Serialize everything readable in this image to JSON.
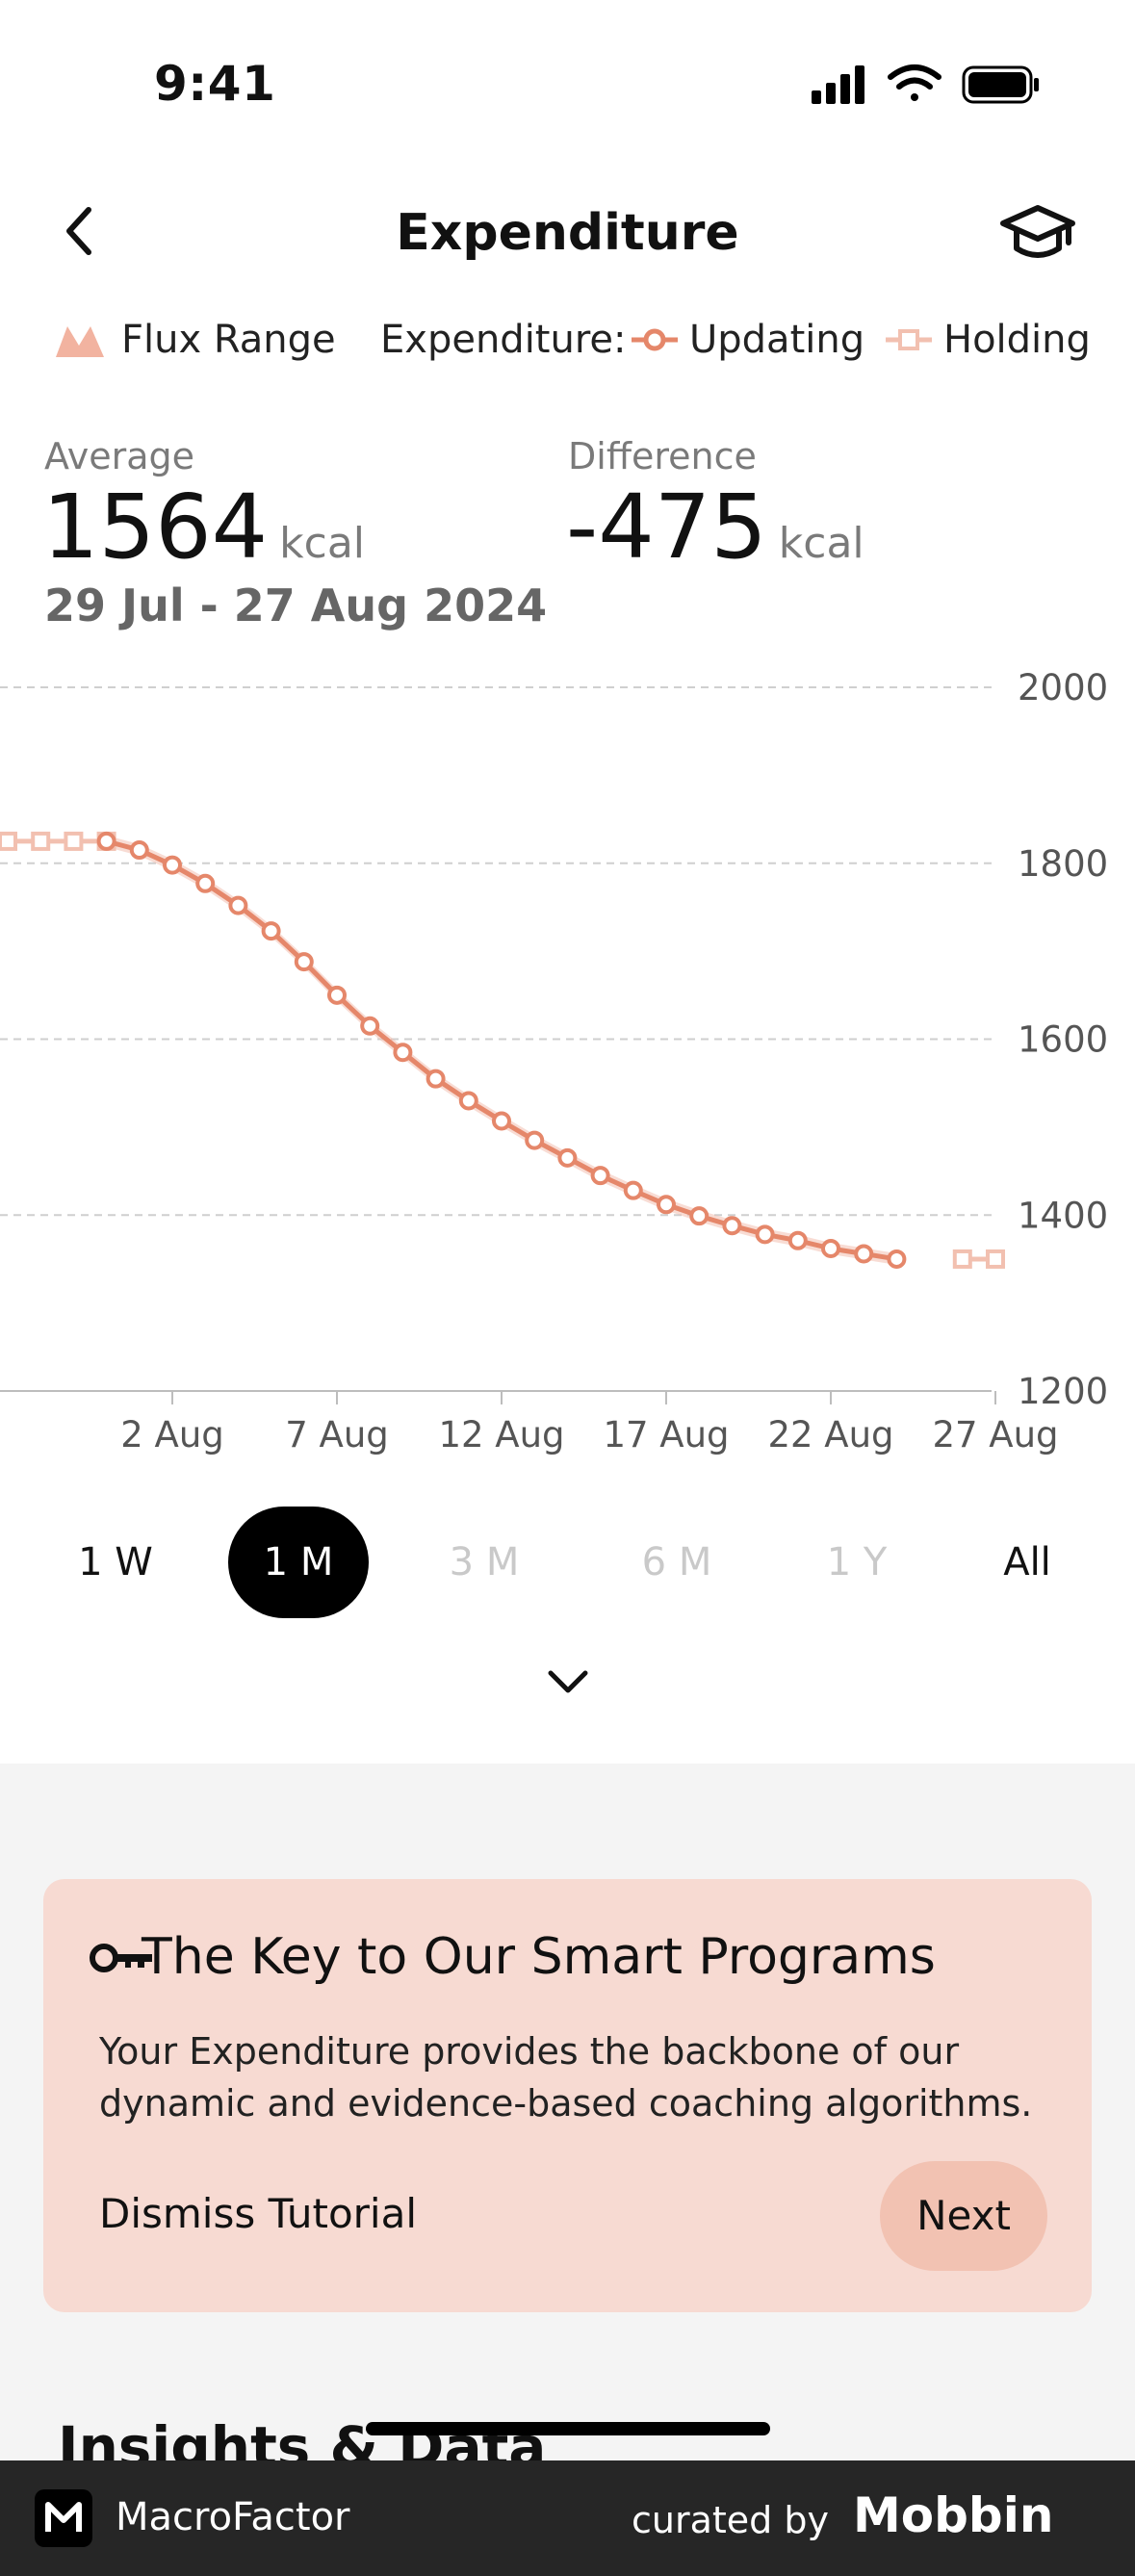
{
  "status_bar": {
    "time": "9:41"
  },
  "header": {
    "title": "Expenditure",
    "back_icon": "chevron-left-icon",
    "learn_icon": "graduation-cap-icon"
  },
  "legend": {
    "flux_range": "Flux Range",
    "expenditure_label": "Expenditure:",
    "updating": "Updating",
    "holding": "Holding"
  },
  "stats": {
    "average_label": "Average",
    "average_value": "1564",
    "average_unit": "kcal",
    "difference_label": "Difference",
    "difference_value": "-475",
    "difference_unit": "kcal",
    "date_range": "29 Jul - 27 Aug 2024"
  },
  "colors": {
    "accent": "#e5876a",
    "accent_light": "#f2c0b0",
    "card_bg": "#f7dad2",
    "next_bg": "#f2c2b2"
  },
  "chart_data": {
    "type": "line",
    "x": [
      "28 Jul",
      "29 Jul",
      "30 Jul",
      "31 Jul",
      "1 Aug",
      "2 Aug",
      "3 Aug",
      "4 Aug",
      "5 Aug",
      "6 Aug",
      "7 Aug",
      "8 Aug",
      "9 Aug",
      "10 Aug",
      "11 Aug",
      "12 Aug",
      "13 Aug",
      "14 Aug",
      "15 Aug",
      "16 Aug",
      "17 Aug",
      "18 Aug",
      "19 Aug",
      "20 Aug",
      "21 Aug",
      "22 Aug",
      "23 Aug",
      "24 Aug",
      "25 Aug",
      "26 Aug",
      "27 Aug",
      "28 Aug"
    ],
    "series": [
      {
        "name": "Holding",
        "values": [
          1825,
          1825,
          1825,
          1825,
          null,
          null,
          null,
          null,
          null,
          null,
          null,
          null,
          null,
          null,
          null,
          null,
          null,
          null,
          null,
          null,
          null,
          null,
          null,
          null,
          null,
          null,
          null,
          null,
          null,
          1350,
          1350,
          null
        ]
      },
      {
        "name": "Updating",
        "values": [
          null,
          null,
          null,
          1825,
          1815,
          1798,
          1777,
          1752,
          1723,
          1688,
          1650,
          1615,
          1585,
          1555,
          1530,
          1507,
          1485,
          1465,
          1445,
          1428,
          1412,
          1399,
          1388,
          1378,
          1371,
          1362,
          1356,
          1350,
          null,
          null,
          null,
          null
        ]
      }
    ],
    "x_ticks": [
      "2 Aug",
      "7 Aug",
      "12 Aug",
      "17 Aug",
      "22 Aug",
      "27 Aug"
    ],
    "y_ticks": [
      "2000",
      "1800",
      "1600",
      "1400",
      "1200"
    ],
    "ylim": [
      1200,
      2000
    ],
    "grid": true
  },
  "range_options": [
    {
      "label": "1 W",
      "state": "enabled"
    },
    {
      "label": "1 M",
      "state": "selected"
    },
    {
      "label": "3 M",
      "state": "disabled"
    },
    {
      "label": "6 M",
      "state": "disabled"
    },
    {
      "label": "1 Y",
      "state": "disabled"
    },
    {
      "label": "All",
      "state": "enabled"
    }
  ],
  "expand_icon": "chevron-down-icon",
  "tutorial": {
    "icon": "key-icon",
    "title": "The Key to Our Smart Programs",
    "body": "Your Expenditure provides the backbone of our dynamic and evidence-based coaching algorithms.",
    "dismiss": "Dismiss Tutorial",
    "next": "Next"
  },
  "section": {
    "insights_title": "Insights & Data"
  },
  "footer": {
    "app_name": "MacroFactor",
    "curated_by": "curated by",
    "brand": "Mobbin"
  }
}
